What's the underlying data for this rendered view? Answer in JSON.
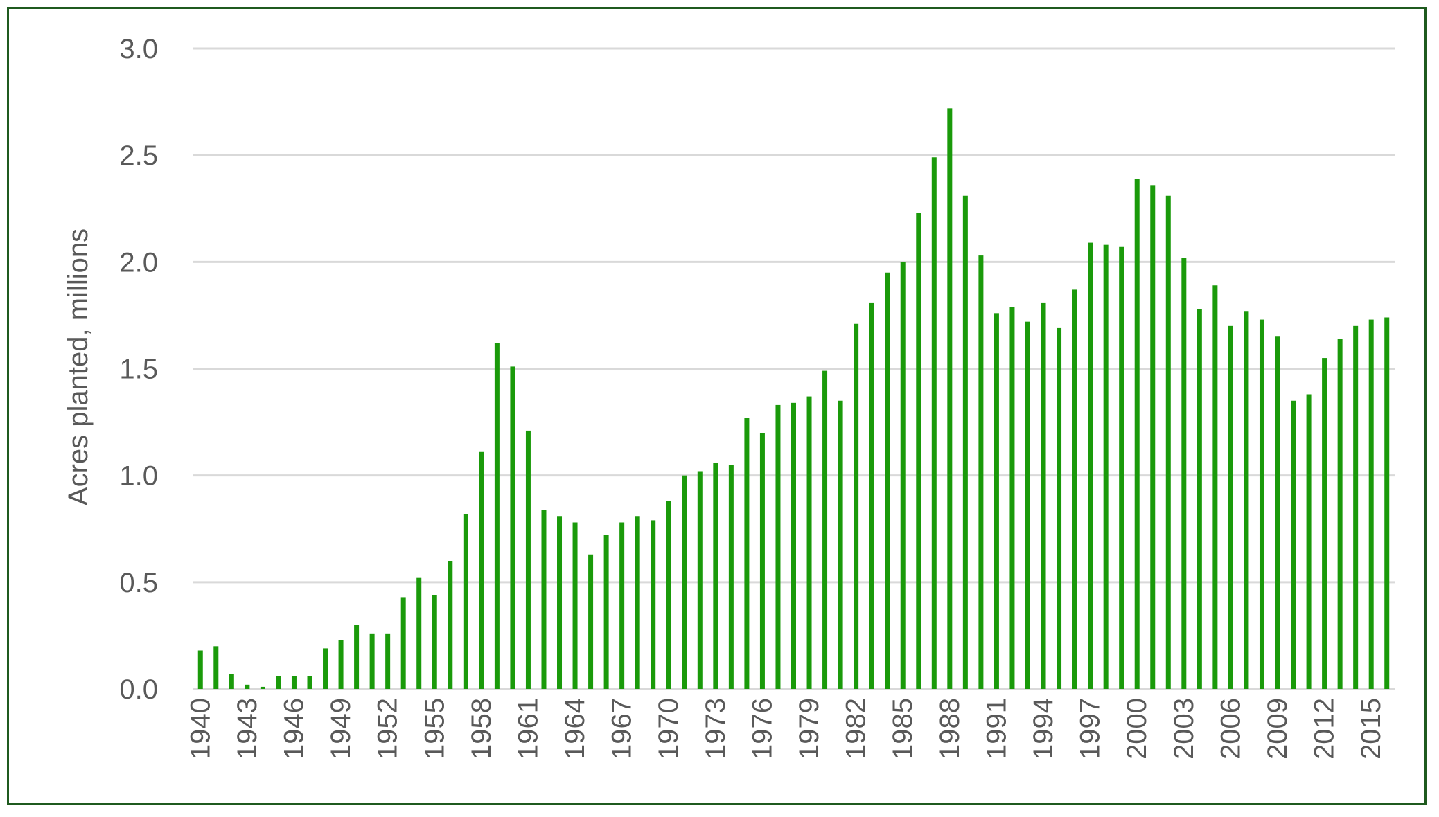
{
  "chart_data": {
    "type": "bar",
    "title": "",
    "xlabel": "",
    "ylabel": "Acres planted, millions",
    "ylim": [
      0,
      3.0
    ],
    "yticks": [
      "0.0",
      "0.5",
      "1.0",
      "1.5",
      "2.0",
      "2.5",
      "3.0"
    ],
    "grid": true,
    "legend": "none",
    "bar_color": "#1a9a0a",
    "grid_color": "#d9d9d9",
    "text_color": "#595959",
    "border_color": "#1f5a1f",
    "categories": [
      "1940",
      "1941",
      "1942",
      "1943",
      "1944",
      "1945",
      "1946",
      "1947",
      "1948",
      "1949",
      "1950",
      "1951",
      "1952",
      "1953",
      "1954",
      "1955",
      "1956",
      "1957",
      "1958",
      "1959",
      "1960",
      "1961",
      "1962",
      "1963",
      "1964",
      "1965",
      "1966",
      "1967",
      "1968",
      "1969",
      "1970",
      "1971",
      "1972",
      "1973",
      "1974",
      "1975",
      "1976",
      "1977",
      "1978",
      "1979",
      "1980",
      "1981",
      "1982",
      "1983",
      "1984",
      "1985",
      "1986",
      "1987",
      "1988",
      "1989",
      "1990",
      "1991",
      "1992",
      "1993",
      "1994",
      "1995",
      "1996",
      "1997",
      "1998",
      "1999",
      "2000",
      "2001",
      "2002",
      "2003",
      "2004",
      "2005",
      "2006",
      "2007",
      "2008",
      "2009",
      "2010",
      "2011",
      "2012",
      "2013",
      "2014",
      "2015",
      "2016"
    ],
    "x_tick_labels": [
      "1940",
      "1943",
      "1946",
      "1949",
      "1952",
      "1955",
      "1958",
      "1961",
      "1964",
      "1967",
      "1970",
      "1973",
      "1976",
      "1979",
      "1982",
      "1985",
      "1988",
      "1991",
      "1994",
      "1997",
      "2000",
      "2003",
      "2006",
      "2009",
      "2012",
      "2015"
    ],
    "values": [
      0.18,
      0.2,
      0.07,
      0.02,
      0.01,
      0.06,
      0.06,
      0.06,
      0.19,
      0.23,
      0.3,
      0.26,
      0.26,
      0.43,
      0.52,
      0.44,
      0.6,
      0.82,
      1.11,
      1.62,
      1.51,
      1.21,
      0.84,
      0.81,
      0.78,
      0.63,
      0.72,
      0.78,
      0.81,
      0.79,
      0.88,
      1.0,
      1.02,
      1.06,
      1.05,
      1.27,
      1.2,
      1.33,
      1.34,
      1.37,
      1.49,
      1.35,
      1.71,
      1.81,
      1.95,
      2.0,
      2.23,
      2.49,
      2.72,
      2.31,
      2.03,
      1.76,
      1.79,
      1.72,
      1.81,
      1.69,
      1.87,
      2.09,
      2.08,
      2.07,
      2.39,
      2.36,
      2.31,
      2.02,
      1.78,
      1.89,
      1.7,
      1.77,
      1.73,
      1.65,
      1.35,
      1.38,
      1.55,
      1.64,
      1.7,
      1.73,
      1.74
    ]
  }
}
